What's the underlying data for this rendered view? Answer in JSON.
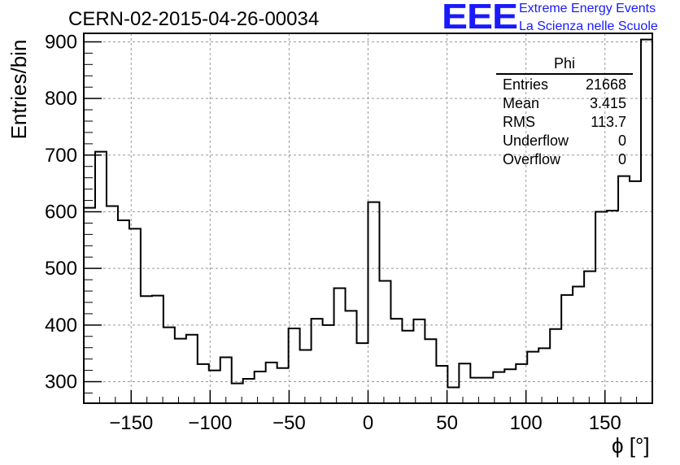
{
  "title": "CERN-02-2015-04-26-00034",
  "logo": {
    "mark": "EEE",
    "line1": "Extreme Energy Events",
    "line2": "La Scienza nelle Scuole",
    "color": "#1a1aff"
  },
  "stats_box": {
    "title": "Phi",
    "rows": [
      {
        "key": "Entries",
        "value": "21668"
      },
      {
        "key": "Mean",
        "value": "3.415"
      },
      {
        "key": "RMS",
        "value": "113.7"
      },
      {
        "key": "Underflow",
        "value": "0"
      },
      {
        "key": "Overflow",
        "value": "0"
      }
    ]
  },
  "chart_data": {
    "type": "bar",
    "title": "CERN-02-2015-04-26-00034",
    "xlabel": "ϕ [°]",
    "ylabel": "Entries/bin",
    "xlim": [
      -180,
      180
    ],
    "ylim": [
      262,
      915
    ],
    "grid": true,
    "bin_width": 7.2,
    "x_ticks": [
      -150,
      -100,
      -50,
      0,
      50,
      100,
      150
    ],
    "x_tick_labels": [
      "−150",
      "−100",
      "−50",
      "0",
      "50",
      "100",
      "150"
    ],
    "y_ticks": [
      300,
      400,
      500,
      600,
      700,
      800,
      900
    ],
    "y_tick_labels": [
      "300",
      "400",
      "500",
      "600",
      "700",
      "800",
      "900"
    ],
    "bin_edges_start": -180,
    "values": [
      607,
      706,
      610,
      585,
      570,
      451,
      452,
      396,
      376,
      383,
      331,
      320,
      343,
      297,
      305,
      318,
      334,
      324,
      394,
      356,
      411,
      400,
      465,
      425,
      368,
      617,
      478,
      411,
      390,
      410,
      375,
      328,
      290,
      332,
      307,
      307,
      317,
      322,
      331,
      353,
      359,
      393,
      453,
      468,
      495,
      600,
      602,
      663,
      654,
      904
    ]
  }
}
